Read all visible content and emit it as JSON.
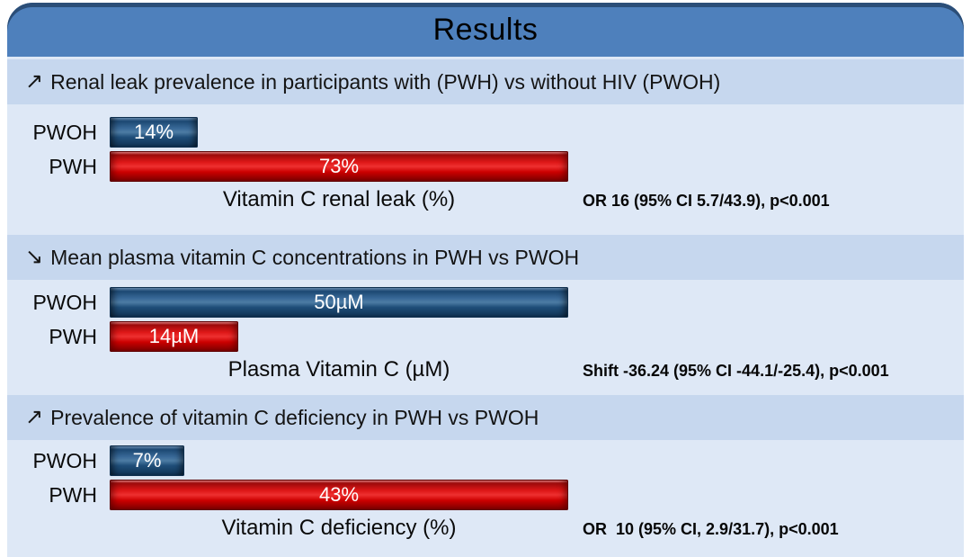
{
  "title": "Results",
  "colors": {
    "header_blue": "#4E80BC",
    "header_edge": "#2B4E78",
    "band_blue": "#C6D7EE",
    "body_blue": "#DEE8F6",
    "bar_blue": "#1F4E79",
    "bar_red": "#CC0000",
    "bar_text": "#FFFFFF"
  },
  "sections": [
    {
      "arrow": "↗",
      "heading": "Renal leak prevalence in participants with (PWH) vs without HIV (PWOH)",
      "axis_label": "Vitamin C renal leak (%)",
      "stat": "OR 16 (95% CI 5.7/43.9), p<0.001",
      "max": 73,
      "rows": [
        {
          "group": "PWOH",
          "value": 14,
          "value_label": "14%",
          "color": "blue"
        },
        {
          "group": "PWH",
          "value": 73,
          "value_label": "73%",
          "color": "red"
        }
      ]
    },
    {
      "arrow": "↘",
      "heading": "Mean plasma vitamin C concentrations in PWH vs PWOH",
      "axis_label": "Plasma Vitamin C (µM)",
      "stat": "Shift -36.24 (95% CI -44.1/-25.4), p<0.001",
      "max": 50,
      "rows": [
        {
          "group": "PWOH",
          "value": 50,
          "value_label": "50µM",
          "color": "blue"
        },
        {
          "group": "PWH",
          "value": 14,
          "value_label": "14µM",
          "color": "red"
        }
      ]
    },
    {
      "arrow": "↗",
      "heading": "Prevalence of vitamin C deficiency in PWH vs PWOH",
      "axis_label": "Vitamin C deficiency (%)",
      "stat": "OR  10 (95% CI, 2.9/31.7), p<0.001",
      "max": 43,
      "rows": [
        {
          "group": "PWOH",
          "value": 7,
          "value_label": "7%",
          "color": "blue"
        },
        {
          "group": "PWH",
          "value": 43,
          "value_label": "43%",
          "color": "red"
        }
      ]
    }
  ],
  "chart_data": [
    {
      "type": "bar",
      "orientation": "horizontal",
      "title": "Renal leak prevalence in participants with (PWH) vs without HIV (PWOH)",
      "categories": [
        "PWOH",
        "PWH"
      ],
      "values": [
        14,
        73
      ],
      "data_labels": [
        "14%",
        "73%"
      ],
      "xlabel": "Vitamin C renal leak (%)",
      "xlim": [
        0,
        73
      ],
      "annotation": "OR 16 (95% CI 5.7/43.9), p<0.001",
      "bar_colors": [
        "#1F4E79",
        "#CC0000"
      ],
      "grid": false,
      "legend": "none"
    },
    {
      "type": "bar",
      "orientation": "horizontal",
      "title": "Mean plasma vitamin C concentrations in PWH vs PWOH",
      "categories": [
        "PWOH",
        "PWH"
      ],
      "values": [
        50,
        14
      ],
      "data_labels": [
        "50µM",
        "14µM"
      ],
      "xlabel": "Plasma Vitamin C (µM)",
      "xlim": [
        0,
        50
      ],
      "annotation": "Shift -36.24 (95% CI -44.1/-25.4), p<0.001",
      "bar_colors": [
        "#1F4E79",
        "#CC0000"
      ],
      "grid": false,
      "legend": "none"
    },
    {
      "type": "bar",
      "orientation": "horizontal",
      "title": "Prevalence of vitamin C deficiency in PWH vs PWOH",
      "categories": [
        "PWOH",
        "PWH"
      ],
      "values": [
        7,
        43
      ],
      "data_labels": [
        "7%",
        "43%"
      ],
      "xlabel": "Vitamin C deficiency (%)",
      "xlim": [
        0,
        43
      ],
      "annotation": "OR  10 (95% CI, 2.9/31.7), p<0.001",
      "bar_colors": [
        "#1F4E79",
        "#CC0000"
      ],
      "grid": false,
      "legend": "none"
    }
  ]
}
